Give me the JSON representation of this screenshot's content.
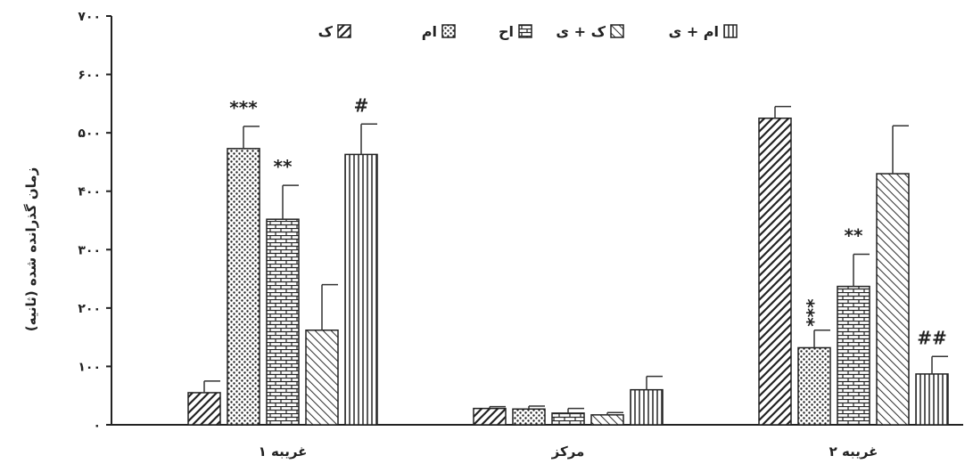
{
  "chart_data": {
    "type": "bar",
    "title": "",
    "xlabel": "",
    "ylabel": "زمان گذرانده شده (ثانیه)",
    "ylim": [
      0,
      700
    ],
    "yticks": [
      {
        "value": 0,
        "label": "۰"
      },
      {
        "value": 100,
        "label": "۱۰۰"
      },
      {
        "value": 200,
        "label": "۲۰۰"
      },
      {
        "value": 300,
        "label": "۳۰۰"
      },
      {
        "value": 400,
        "label": "۴۰۰"
      },
      {
        "value": 500,
        "label": "۵۰۰"
      },
      {
        "value": 600,
        "label": "۶۰۰"
      },
      {
        "value": 700,
        "label": "۷۰۰"
      }
    ],
    "categories": [
      "غریبه ۱",
      "مرکز",
      "غریبه ۲"
    ],
    "legend_position": "top",
    "grid": false,
    "series": [
      {
        "name": "ک",
        "pattern": "diag-right",
        "values": [
          55,
          28,
          525
        ],
        "errors": [
          20,
          3,
          20
        ]
      },
      {
        "name": "ام",
        "pattern": "dots",
        "values": [
          473,
          27,
          132
        ],
        "errors": [
          38,
          5,
          30
        ]
      },
      {
        "name": "اح",
        "pattern": "bricks",
        "values": [
          352,
          20,
          237
        ],
        "errors": [
          58,
          8,
          55
        ]
      },
      {
        "name": "ک + ی",
        "pattern": "diag-left",
        "values": [
          162,
          17,
          430
        ],
        "errors": [
          78,
          4,
          82
        ]
      },
      {
        "name": "ام + ی",
        "pattern": "vertical",
        "values": [
          463,
          60,
          87
        ],
        "errors": [
          52,
          23,
          30
        ]
      }
    ],
    "annotations": [
      {
        "series": 1,
        "category": 0,
        "text": "***"
      },
      {
        "series": 2,
        "category": 0,
        "text": "**"
      },
      {
        "series": 4,
        "category": 0,
        "text": "#"
      },
      {
        "series": 1,
        "category": 2,
        "text": "***"
      },
      {
        "series": 2,
        "category": 2,
        "text": "**"
      },
      {
        "series": 4,
        "category": 2,
        "text": "##"
      }
    ]
  }
}
